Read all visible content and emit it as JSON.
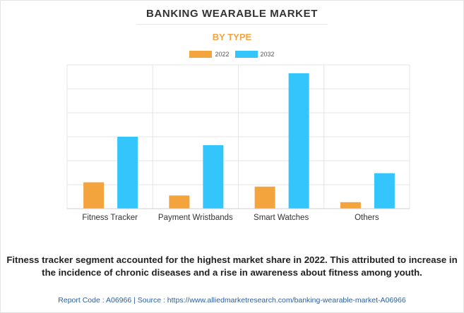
{
  "header": {
    "title": "BANKING WEARABLE MARKET",
    "subtitle": "BY TYPE"
  },
  "colors": {
    "series_2022": "#f4a43c",
    "series_2032": "#33c5fb",
    "title": "#333333",
    "subtitle": "#f4a43c",
    "footer_link": "#2c5f9e"
  },
  "chart_data": {
    "type": "bar",
    "categories": [
      "Fitness Tracker",
      "Payment Wristbands",
      "Smart Watches",
      "Others"
    ],
    "series": [
      {
        "name": "2022",
        "values": [
          1.1,
          0.55,
          0.92,
          0.27
        ]
      },
      {
        "name": "2032",
        "values": [
          3.0,
          2.65,
          5.65,
          1.48
        ]
      }
    ],
    "ylim": [
      0,
      6
    ],
    "gridlines": 6,
    "grid": true,
    "legend": "top-center",
    "xlabel": "",
    "ylabel": ""
  },
  "caption": "Fitness tracker segment accounted for the highest market share in 2022. This attributed to increase in the incidence of chronic diseases and a rise in awareness about fitness among youth.",
  "footer": {
    "report_code": "Report Code : A06966",
    "separator": "|",
    "source": "Source : https://www.alliedmarketresearch.com/banking-wearable-market-A06966"
  }
}
